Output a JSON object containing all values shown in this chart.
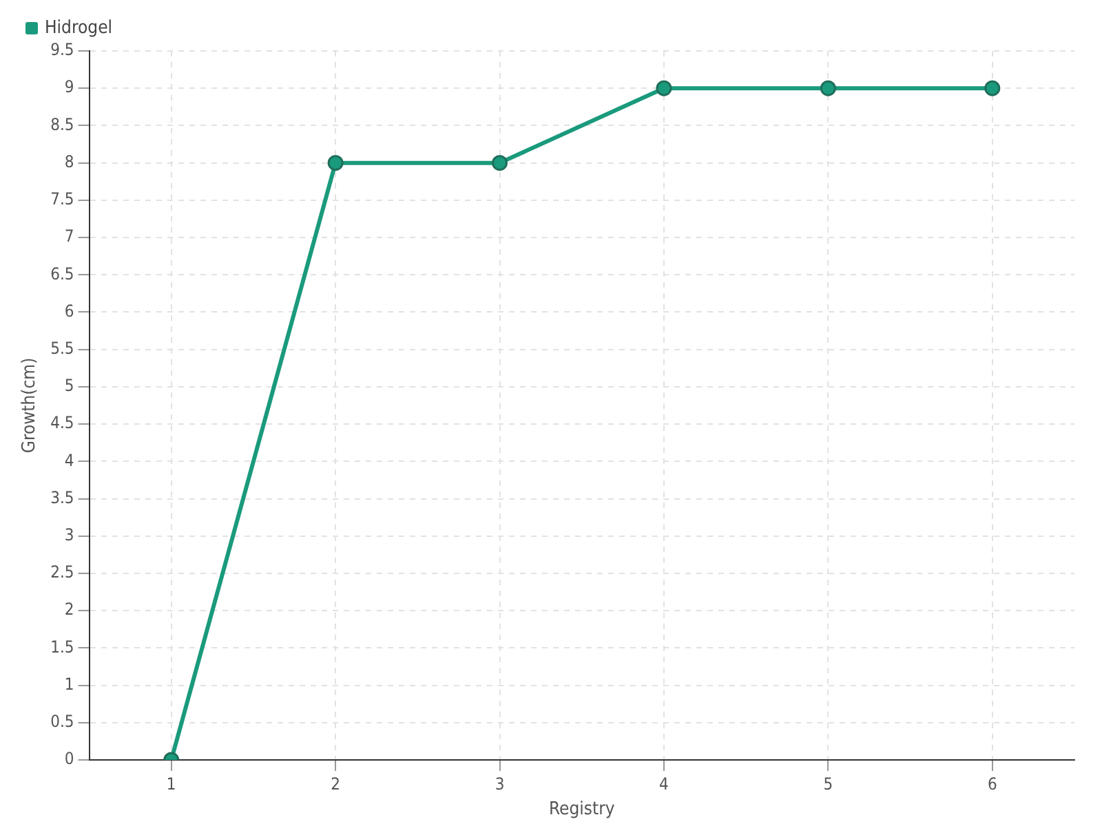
{
  "chart_data": {
    "type": "line",
    "xlabel": "Registry",
    "ylabel": "Growth(cm)",
    "categories": [
      "1",
      "2",
      "3",
      "4",
      "5",
      "6"
    ],
    "series": [
      {
        "name": "Hidrogel",
        "color": "#1a9a7c",
        "values": [
          0,
          8,
          8,
          9,
          9,
          9
        ]
      }
    ],
    "ylim": [
      0,
      9.5
    ],
    "yticks": [
      0,
      0.5,
      1,
      1.5,
      2,
      2.5,
      3,
      3.5,
      4,
      4.5,
      5,
      5.5,
      6,
      6.5,
      7,
      7.5,
      8,
      8.5,
      9,
      9.5
    ],
    "grid": true,
    "legend": "top left",
    "marker": "circle",
    "line_style": "solid"
  }
}
